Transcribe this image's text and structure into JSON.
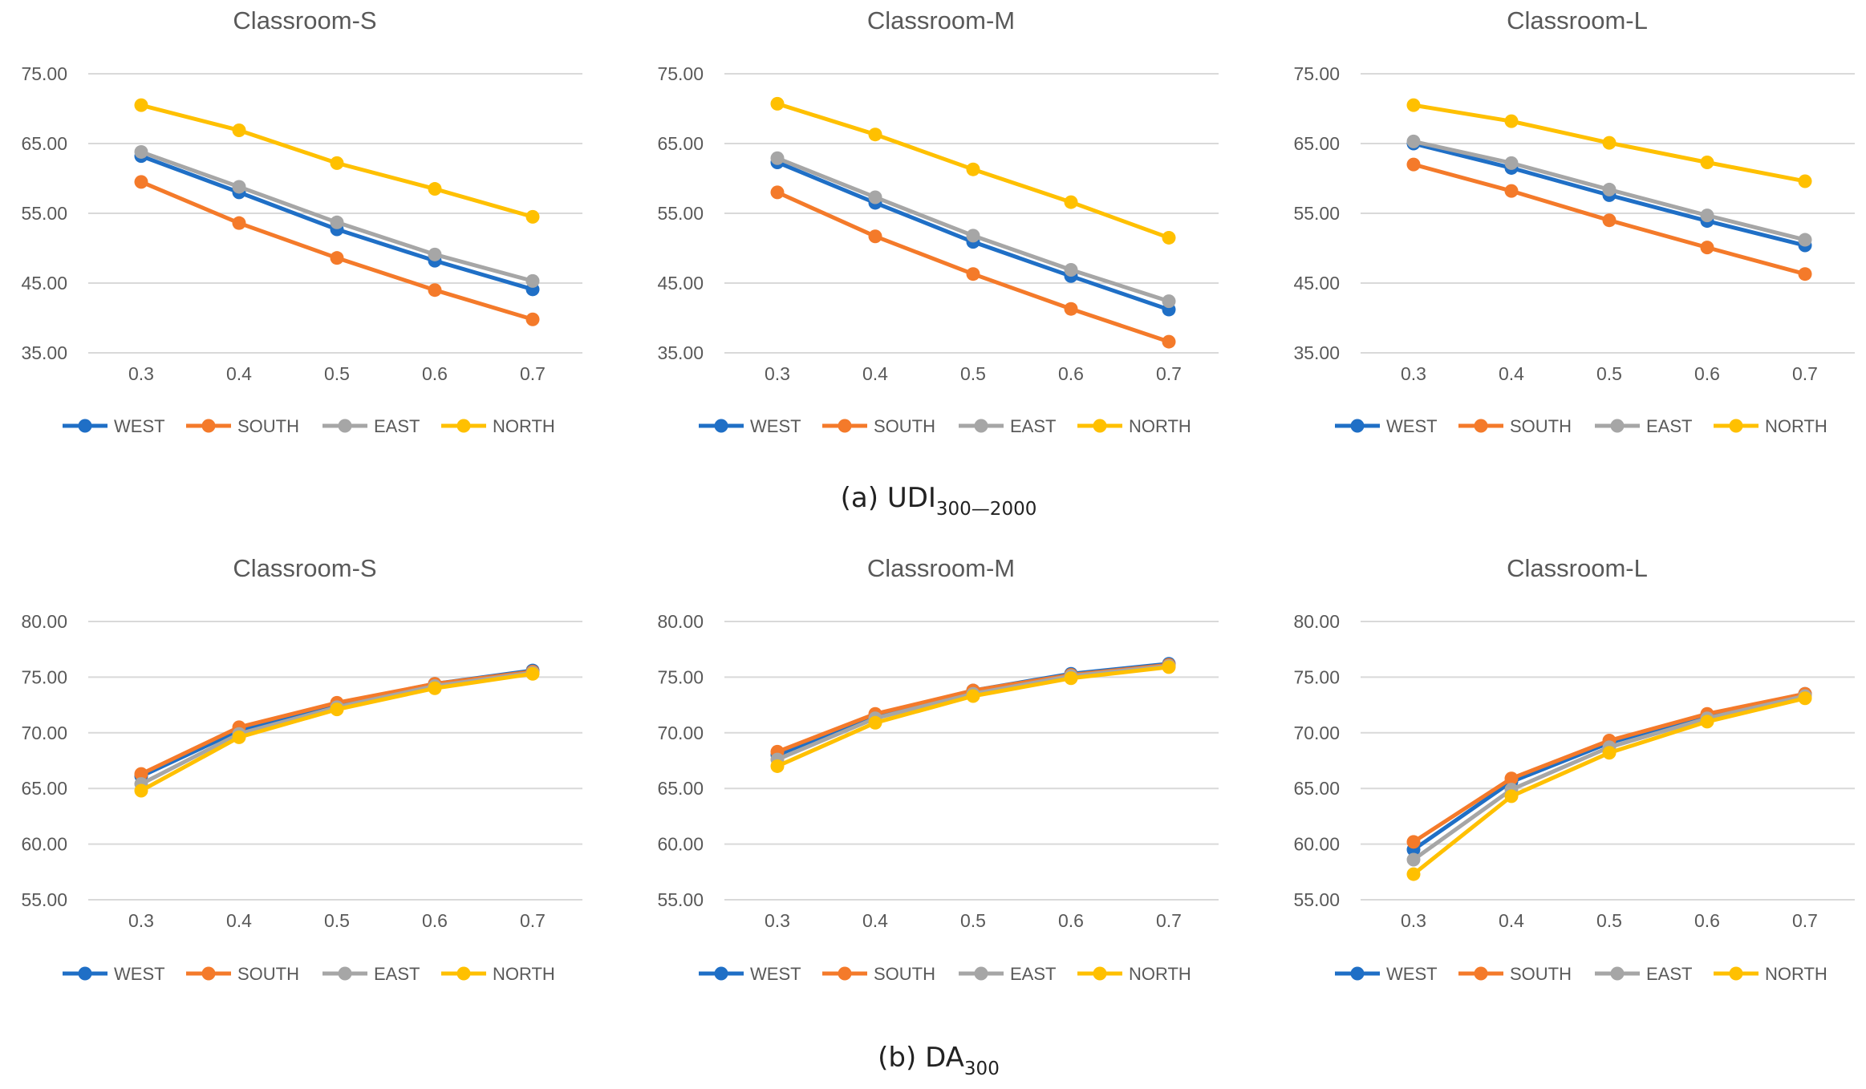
{
  "figure": {
    "caption_a": {
      "main": "(a) UDI",
      "sub": "300—2000"
    },
    "caption_b": {
      "main": "(b) DA",
      "sub": "300"
    }
  },
  "colors": {
    "WEST": "#1F6FC6",
    "SOUTH": "#F47A2A",
    "EAST": "#A6A6A6",
    "NORTH": "#FFC000",
    "grid": "#D9D9D9",
    "text": "#595959"
  },
  "chart_data": [
    {
      "type": "line",
      "title": "Classroom-S",
      "categories": [
        "0.3",
        "0.4",
        "0.5",
        "0.6",
        "0.7"
      ],
      "ylim": [
        35,
        75
      ],
      "yticks": [
        "35.00",
        "45.00",
        "55.00",
        "65.00",
        "75.00"
      ],
      "grid": true,
      "legend": "bottom",
      "series": [
        {
          "name": "WEST",
          "values": [
            63.2,
            58.0,
            52.7,
            48.2,
            44.1
          ]
        },
        {
          "name": "SOUTH",
          "values": [
            59.5,
            53.6,
            48.6,
            44.0,
            39.8
          ]
        },
        {
          "name": "EAST",
          "values": [
            63.8,
            58.8,
            53.7,
            49.1,
            45.3
          ]
        },
        {
          "name": "NORTH",
          "values": [
            70.5,
            66.9,
            62.2,
            58.5,
            54.5
          ]
        }
      ]
    },
    {
      "type": "line",
      "title": "Classroom-M",
      "categories": [
        "0.3",
        "0.4",
        "0.5",
        "0.6",
        "0.7"
      ],
      "ylim": [
        35,
        75
      ],
      "yticks": [
        "35.00",
        "45.00",
        "55.00",
        "65.00",
        "75.00"
      ],
      "grid": true,
      "legend": "bottom",
      "series": [
        {
          "name": "WEST",
          "values": [
            62.3,
            56.5,
            50.9,
            46.0,
            41.2
          ]
        },
        {
          "name": "SOUTH",
          "values": [
            58.0,
            51.7,
            46.3,
            41.3,
            36.6
          ]
        },
        {
          "name": "EAST",
          "values": [
            62.9,
            57.3,
            51.8,
            46.9,
            42.4
          ]
        },
        {
          "name": "NORTH",
          "values": [
            70.7,
            66.3,
            61.3,
            56.6,
            51.5
          ]
        }
      ]
    },
    {
      "type": "line",
      "title": "Classroom-L",
      "categories": [
        "0.3",
        "0.4",
        "0.5",
        "0.6",
        "0.7"
      ],
      "ylim": [
        35,
        75
      ],
      "yticks": [
        "35.00",
        "45.00",
        "55.00",
        "65.00",
        "75.00"
      ],
      "grid": true,
      "legend": "bottom",
      "series": [
        {
          "name": "WEST",
          "values": [
            65.0,
            61.5,
            57.6,
            53.9,
            50.4
          ]
        },
        {
          "name": "SOUTH",
          "values": [
            62.0,
            58.2,
            54.0,
            50.1,
            46.3
          ]
        },
        {
          "name": "EAST",
          "values": [
            65.3,
            62.2,
            58.4,
            54.7,
            51.2
          ]
        },
        {
          "name": "NORTH",
          "values": [
            70.5,
            68.2,
            65.1,
            62.3,
            59.6
          ]
        }
      ]
    },
    {
      "type": "line",
      "title": "Classroom-S",
      "categories": [
        "0.3",
        "0.4",
        "0.5",
        "0.6",
        "0.7"
      ],
      "ylim": [
        55,
        80
      ],
      "yticks": [
        "55.00",
        "60.00",
        "65.00",
        "70.00",
        "75.00",
        "80.00"
      ],
      "grid": true,
      "legend": "bottom",
      "series": [
        {
          "name": "WEST",
          "values": [
            66.1,
            70.2,
            72.6,
            74.4,
            75.6
          ]
        },
        {
          "name": "SOUTH",
          "values": [
            66.3,
            70.5,
            72.7,
            74.4,
            75.5
          ]
        },
        {
          "name": "EAST",
          "values": [
            65.4,
            69.9,
            72.3,
            74.2,
            75.4
          ]
        },
        {
          "name": "NORTH",
          "values": [
            64.8,
            69.6,
            72.1,
            74.0,
            75.3
          ]
        }
      ]
    },
    {
      "type": "line",
      "title": "Classroom-M",
      "categories": [
        "0.3",
        "0.4",
        "0.5",
        "0.6",
        "0.7"
      ],
      "ylim": [
        55,
        80
      ],
      "yticks": [
        "55.00",
        "60.00",
        "65.00",
        "70.00",
        "75.00",
        "80.00"
      ],
      "grid": true,
      "legend": "bottom",
      "series": [
        {
          "name": "WEST",
          "values": [
            68.0,
            71.6,
            73.8,
            75.3,
            76.2
          ]
        },
        {
          "name": "SOUTH",
          "values": [
            68.3,
            71.7,
            73.8,
            75.2,
            76.1
          ]
        },
        {
          "name": "EAST",
          "values": [
            67.6,
            71.3,
            73.5,
            75.1,
            76.0
          ]
        },
        {
          "name": "NORTH",
          "values": [
            67.0,
            70.9,
            73.3,
            74.9,
            75.9
          ]
        }
      ]
    },
    {
      "type": "line",
      "title": "Classroom-L",
      "categories": [
        "0.3",
        "0.4",
        "0.5",
        "0.6",
        "0.7"
      ],
      "ylim": [
        55,
        80
      ],
      "yticks": [
        "55.00",
        "60.00",
        "65.00",
        "70.00",
        "75.00",
        "80.00"
      ],
      "grid": true,
      "legend": "bottom",
      "series": [
        {
          "name": "WEST",
          "values": [
            59.5,
            65.6,
            69.1,
            71.6,
            73.5
          ]
        },
        {
          "name": "SOUTH",
          "values": [
            60.2,
            65.9,
            69.3,
            71.7,
            73.5
          ]
        },
        {
          "name": "EAST",
          "values": [
            58.6,
            64.9,
            68.7,
            71.3,
            73.3
          ]
        },
        {
          "name": "NORTH",
          "values": [
            57.3,
            64.3,
            68.2,
            71.0,
            73.1
          ]
        }
      ]
    }
  ]
}
